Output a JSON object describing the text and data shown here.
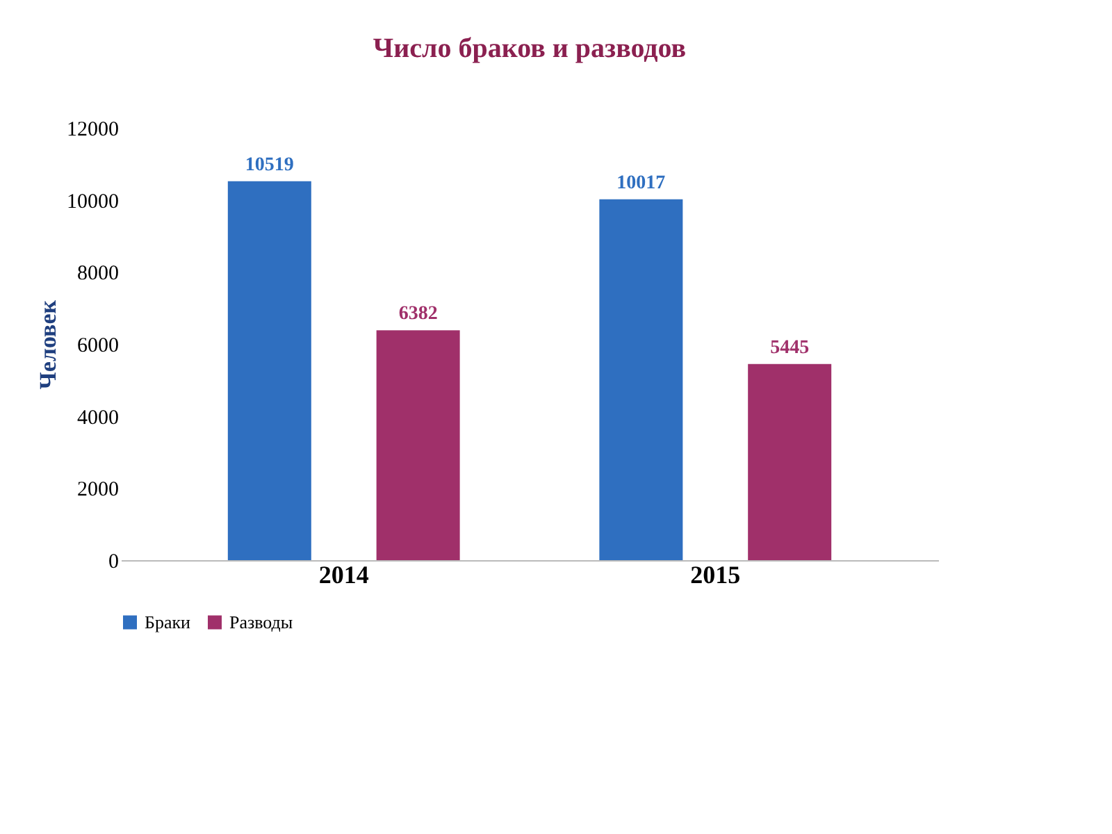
{
  "chart_data": {
    "type": "bar",
    "title": "Число браков и разводов",
    "ylabel": "Человек",
    "categories": [
      "2014",
      "2015"
    ],
    "series": [
      {
        "name": "Браки",
        "color": "#2f6fc0",
        "values": [
          10519,
          10017
        ]
      },
      {
        "name": "Разводы",
        "color": "#a0306a",
        "values": [
          6382,
          5445
        ]
      }
    ],
    "ylim": [
      0,
      12000
    ],
    "yticks": [
      0,
      2000,
      4000,
      6000,
      8000,
      10000,
      12000
    ],
    "data_labels": true,
    "legend": "bottom",
    "grid": false
  }
}
